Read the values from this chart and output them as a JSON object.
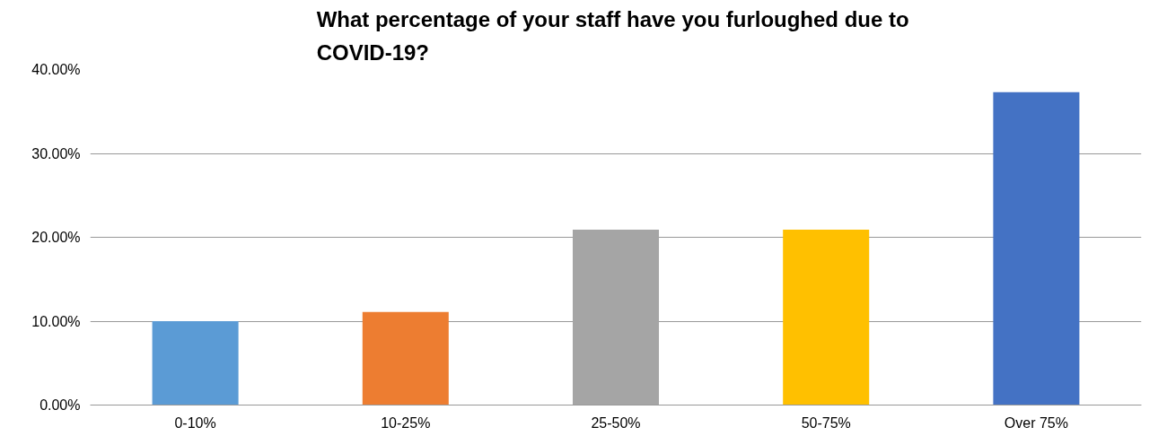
{
  "chart_data": {
    "type": "bar",
    "title": "What percentage of your staff  have you furloughed due to\nCOVID-19?",
    "categories": [
      "0-10%",
      "10-25%",
      "25-50%",
      "50-75%",
      "Over 75%"
    ],
    "values": [
      10.0,
      11.1,
      20.9,
      20.9,
      37.3
    ],
    "colors": [
      "#5b9bd5",
      "#ed7d31",
      "#a5a5a5",
      "#ffc000",
      "#4472c4"
    ],
    "ylim": [
      0,
      40
    ],
    "yticks": [
      {
        "value": 0,
        "label": "0.00%"
      },
      {
        "value": 10,
        "label": "10.00%"
      },
      {
        "value": 20,
        "label": "20.00%"
      },
      {
        "value": 30,
        "label": "30.00%"
      },
      {
        "value": 40,
        "label": "40.00%"
      }
    ],
    "grid": "y"
  }
}
